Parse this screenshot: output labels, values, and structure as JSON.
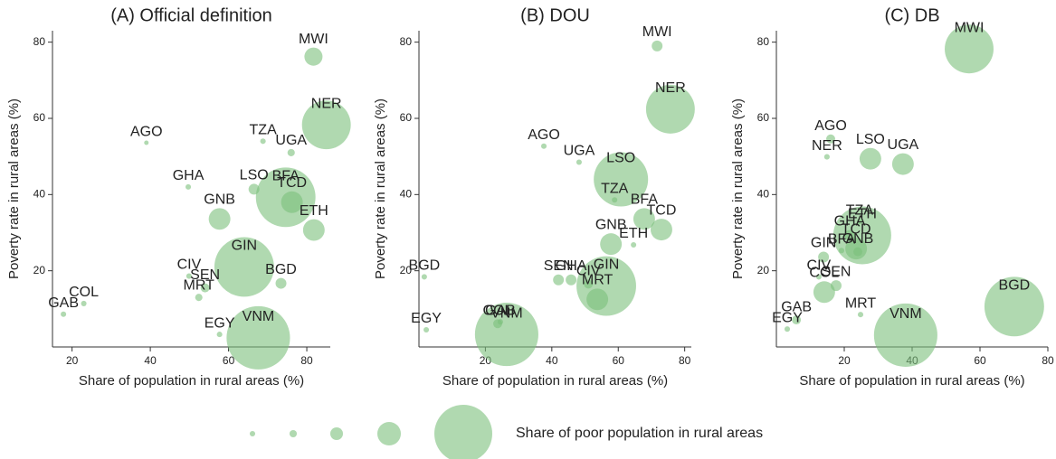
{
  "chart_data": [
    {
      "type": "bubble",
      "title": "(A) Official definition",
      "x_label": "Share of population in rural areas (%)",
      "y_label": "Poverty rate in rural areas (%)",
      "xlim": [
        15,
        86
      ],
      "ylim": [
        0,
        83
      ],
      "xticks": [
        20,
        40,
        60,
        80
      ],
      "yticks": [
        20,
        40,
        60,
        80
      ],
      "color": "#7cc07c",
      "labels": [
        "MWI",
        "NER",
        "AGO",
        "TZA",
        "UGA",
        "BFA",
        "GHA",
        "LSO",
        "TCD",
        "GNB",
        "ETH",
        "GIN",
        "BGD",
        "CIV",
        "SEN",
        "MRT",
        "COL",
        "GAB",
        "EGY",
        "VNM"
      ],
      "x": [
        81.7,
        85,
        39,
        68.8,
        76,
        74.6,
        49.7,
        66.5,
        76.2,
        57.7,
        81.8,
        64,
        73.4,
        49.9,
        54,
        52.4,
        23,
        17.8,
        57.7,
        67.6
      ],
      "y": [
        76.2,
        58.3,
        53.6,
        54,
        51,
        39.3,
        42,
        41.4,
        38,
        33.6,
        30.7,
        21,
        16.7,
        18.6,
        15.5,
        13,
        11.4,
        8.6,
        3.3,
        2.4
      ],
      "size": [
        9.8,
        71,
        0.6,
        0.9,
        1.6,
        106,
        0.9,
        3.5,
        14,
        14,
        14,
        106,
        3.5,
        0.9,
        2.4,
        1.6,
        0.9,
        0.9,
        0.9,
        120
      ]
    },
    {
      "type": "bubble",
      "title": "(B) DOU",
      "x_label": "Share of population in rural areas (%)",
      "y_label": "Poverty rate in rural areas (%)",
      "xlim": [
        0,
        82
      ],
      "ylim": [
        0,
        83
      ],
      "xticks": [
        20,
        40,
        60,
        80
      ],
      "yticks": [
        20,
        40,
        60,
        80
      ],
      "color": "#7cc07c",
      "labels": [
        "MWI",
        "NER",
        "AGO",
        "UGA",
        "LSO",
        "TZA",
        "BFA",
        "TCD",
        "GNB",
        "ETH",
        "GIN",
        "MRT",
        "CIV",
        "SEN",
        "GHA",
        "BGD",
        "EGY",
        "COL",
        "GAB",
        "VNM"
      ],
      "x": [
        71.7,
        75.7,
        37.6,
        48.2,
        60.8,
        58.9,
        67.8,
        73,
        57.8,
        64.6,
        56.4,
        53.7,
        51,
        42,
        45.8,
        1.6,
        2.2,
        23.7,
        24.5,
        26.4
      ],
      "y": [
        79,
        62.4,
        52.7,
        48.5,
        44,
        38.6,
        33.6,
        30.8,
        27,
        26.8,
        16,
        12.5,
        16.5,
        17.6,
        17.6,
        18.4,
        4.5,
        6.1,
        6.6,
        3.3
      ],
      "size": [
        3.5,
        71,
        0.9,
        0.9,
        88,
        0.9,
        14,
        14,
        14,
        0.9,
        106,
        14,
        2.4,
        3.5,
        3.5,
        0.9,
        0.9,
        2.4,
        0.9,
        120
      ]
    },
    {
      "type": "bubble",
      "title": "(C) DB",
      "x_label": "Share of population in rural areas (%)",
      "y_label": "Poverty rate in rural areas (%)",
      "xlim": [
        0,
        80
      ],
      "ylim": [
        0,
        83
      ],
      "xticks": [
        20,
        40,
        60,
        80
      ],
      "yticks": [
        20,
        40,
        60,
        80
      ],
      "color": "#7cc07c",
      "labels": [
        "MWI",
        "AGO",
        "NER",
        "LSO",
        "UGA",
        "TZA",
        "GHA",
        "TCD",
        "ETH",
        "GNB",
        "BFA",
        "GIN",
        "CIV",
        "COL",
        "SEN",
        "MRT",
        "GAB",
        "EGY",
        "VNM",
        "BGD"
      ],
      "x": [
        56.8,
        16,
        14.9,
        27.7,
        37.3,
        24.5,
        21.6,
        23.5,
        25.3,
        24,
        19.2,
        13.9,
        12.5,
        14.1,
        17.6,
        24.8,
        5.9,
        3.2,
        38.1,
        70.1
      ],
      "y": [
        78.2,
        54.6,
        49.9,
        49.4,
        48,
        32.9,
        29.3,
        25.8,
        29.3,
        25,
        25.3,
        23.6,
        18.4,
        14.4,
        16.1,
        8.5,
        7.1,
        4.7,
        3.1,
        10.6
      ],
      "size": [
        71,
        2.4,
        0.9,
        14,
        14,
        0.9,
        3.5,
        14,
        100,
        2.4,
        0.9,
        3.5,
        0.9,
        14,
        3.5,
        0.9,
        2.4,
        0.9,
        120,
        106
      ]
    }
  ],
  "size_legend": {
    "label": "Share of poor population in rural areas",
    "sizes": [
      0.9,
      1.6,
      4.8,
      16.5,
      100
    ],
    "color": "#7cc07c"
  }
}
